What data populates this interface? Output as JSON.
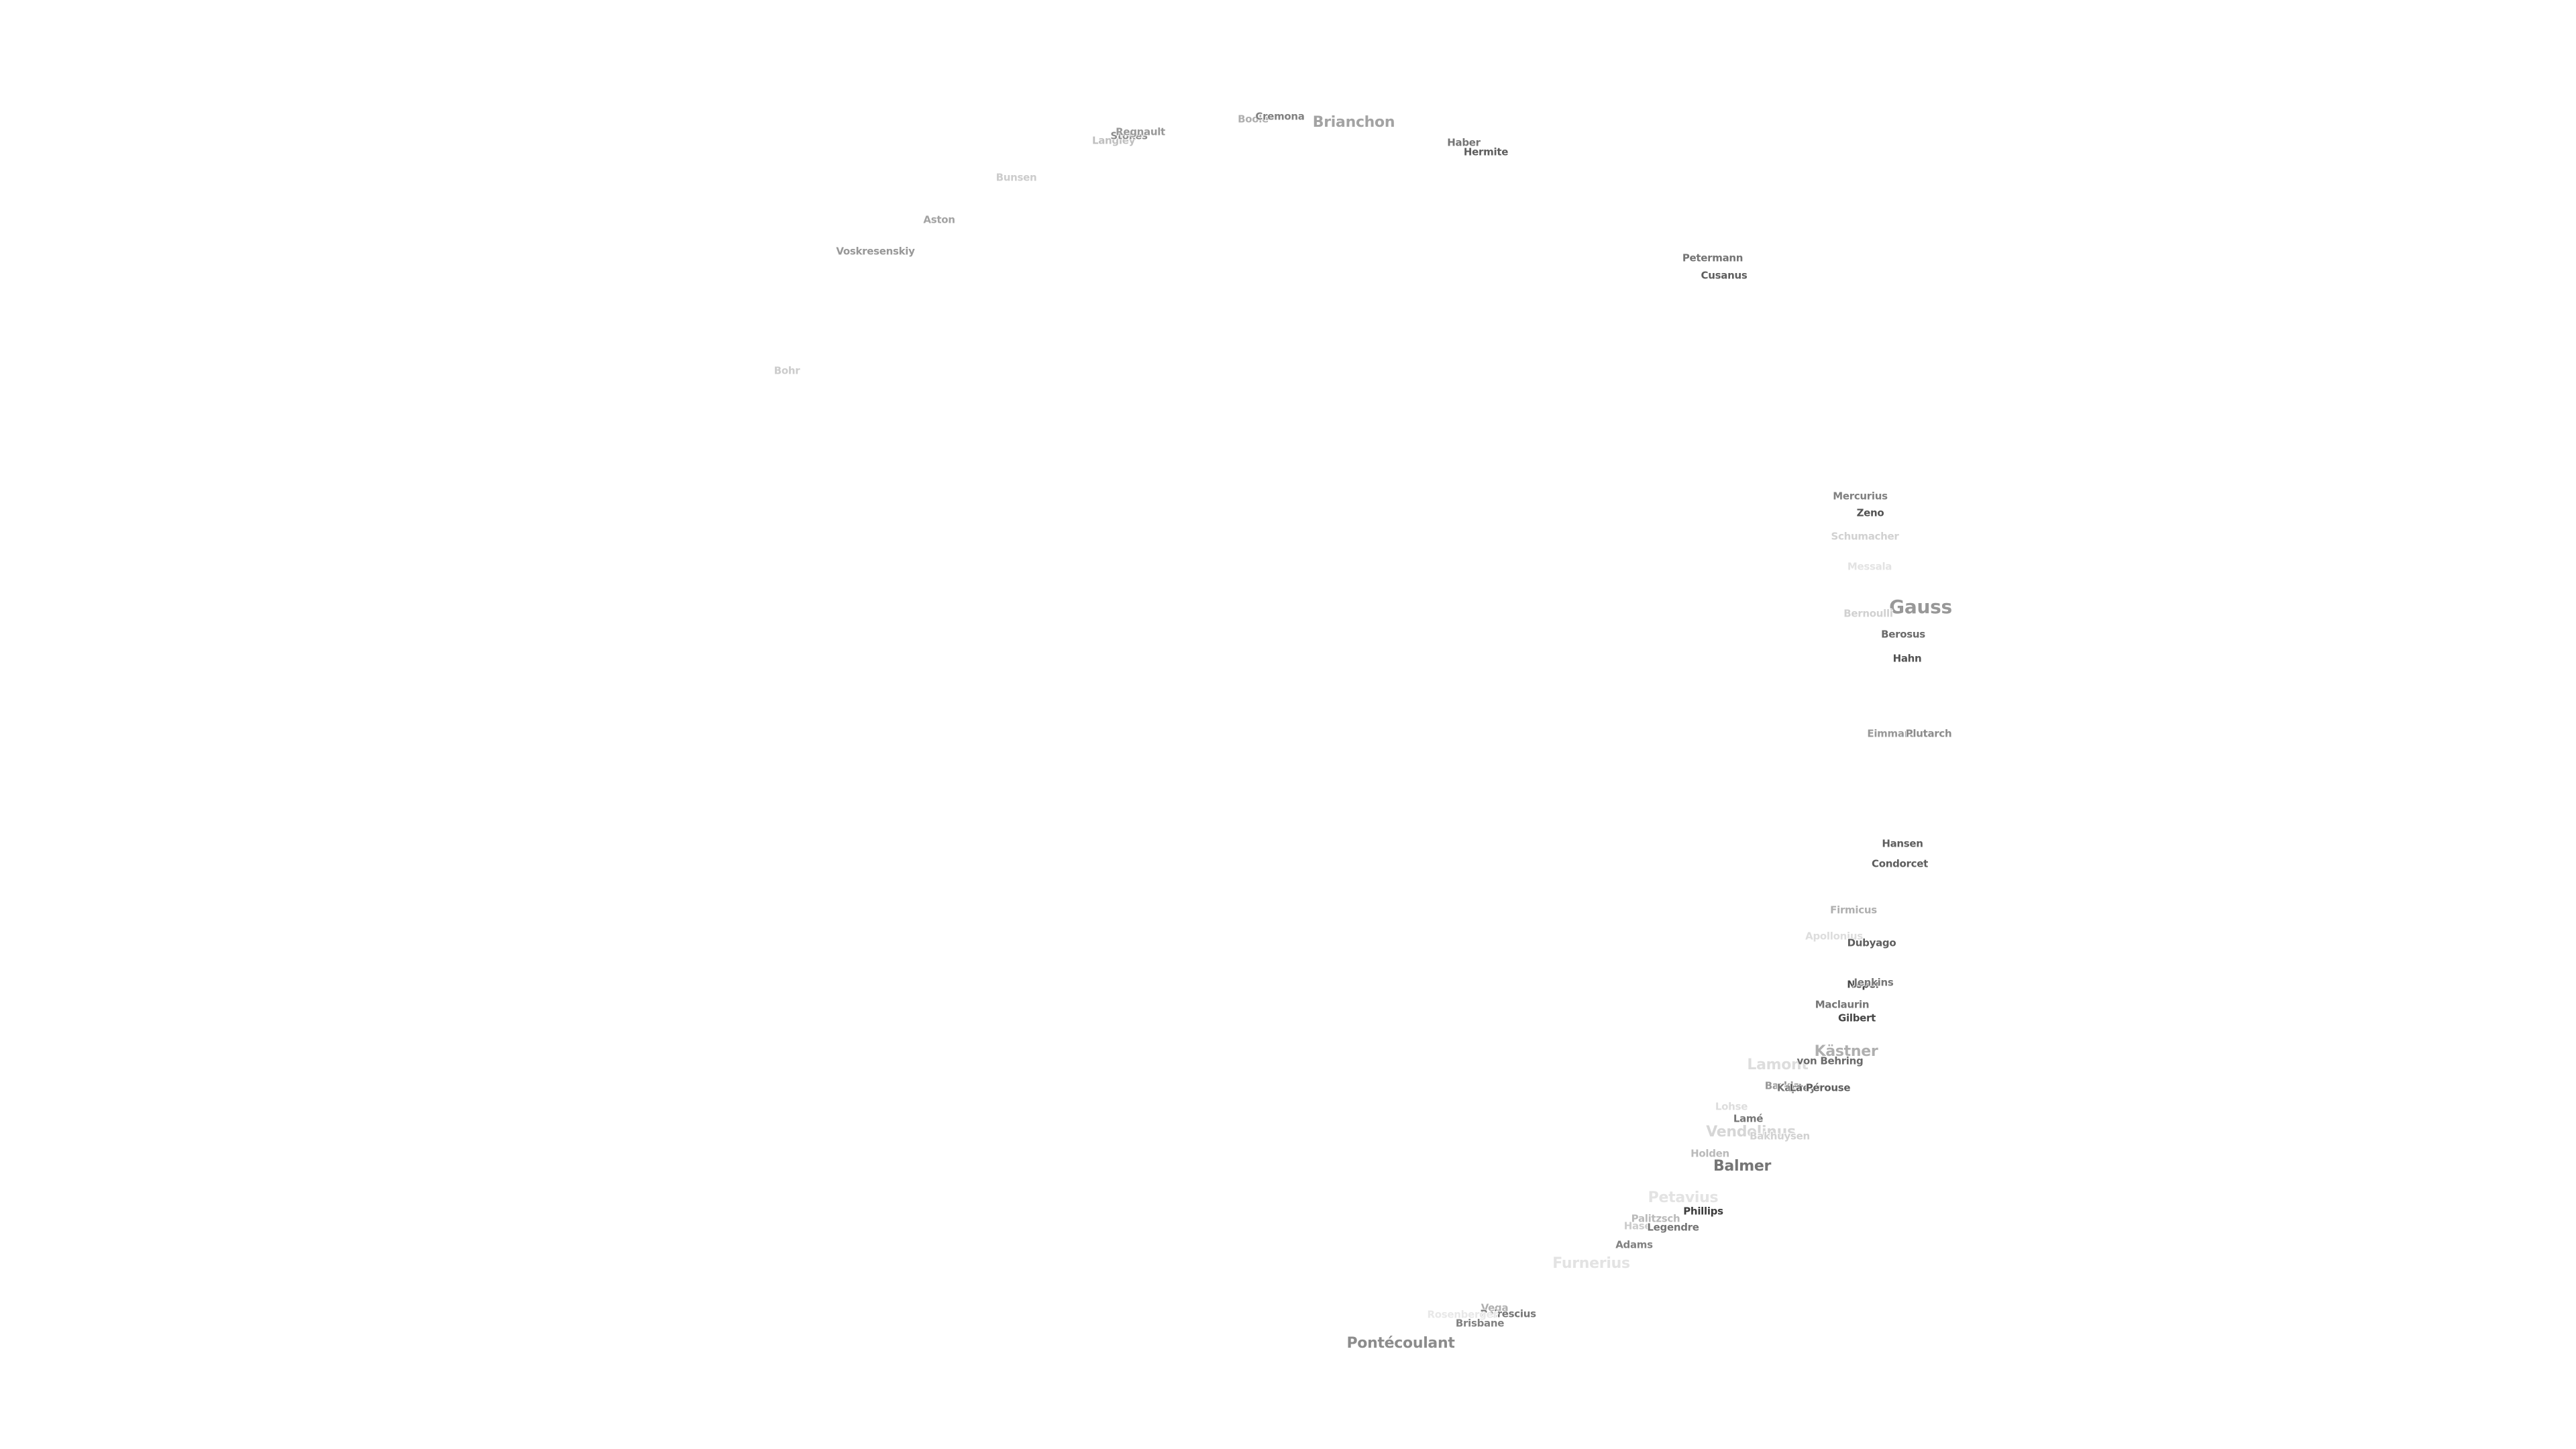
{
  "map": {
    "craters": [
      {
        "name": "Bohr",
        "tone": 0.22,
        "size": "s"
      },
      {
        "name": "Vosk­resenskiy",
        "tone": 0.45,
        "size": "s"
      },
      {
        "name": "Aston",
        "tone": 0.4,
        "size": "s"
      },
      {
        "name": "Bunsen",
        "tone": 0.22,
        "size": "s"
      },
      {
        "name": "Langley",
        "tone": 0.28,
        "size": "s"
      },
      {
        "name": "Stokes",
        "tone": 0.5,
        "size": "s"
      },
      {
        "name": "Regnault",
        "tone": 0.45,
        "size": "s"
      },
      {
        "name": "Boole",
        "tone": 0.35,
        "size": "s"
      },
      {
        "name": "Cremona",
        "tone": 0.55,
        "size": "s"
      },
      {
        "name": "Brianchon",
        "tone": 0.4,
        "size": "m"
      },
      {
        "name": "Haber",
        "tone": 0.6,
        "size": "s"
      },
      {
        "name": "Hermite",
        "tone": 0.7,
        "size": "s"
      },
      {
        "name": "Petermann",
        "tone": 0.6,
        "size": "s"
      },
      {
        "name": "Cusanus",
        "tone": 0.7,
        "size": "s"
      },
      {
        "name": "Mercurius",
        "tone": 0.55,
        "size": "s"
      },
      {
        "name": "Zeno",
        "tone": 0.75,
        "size": "s"
      },
      {
        "name": "Schumacher",
        "tone": 0.2,
        "size": "s"
      },
      {
        "name": "Messala",
        "tone": 0.12,
        "size": "s"
      },
      {
        "name": "Gauss",
        "tone": 0.45,
        "size": "l"
      },
      {
        "name": "Bernoulli",
        "tone": 0.2,
        "size": "s"
      },
      {
        "name": "Berosus",
        "tone": 0.65,
        "size": "s"
      },
      {
        "name": "Hahn",
        "tone": 0.75,
        "size": "s"
      },
      {
        "name": "Eimmart",
        "tone": 0.45,
        "size": "s"
      },
      {
        "name": "Plutarch",
        "tone": 0.5,
        "size": "s"
      },
      {
        "name": "Hansen",
        "tone": 0.7,
        "size": "s"
      },
      {
        "name": "Condorcet",
        "tone": 0.7,
        "size": "s"
      },
      {
        "name": "Firmicus",
        "tone": 0.35,
        "size": "s"
      },
      {
        "name": "Apollonius",
        "tone": 0.15,
        "size": "s"
      },
      {
        "name": "Dubyago",
        "tone": 0.7,
        "size": "s"
      },
      {
        "name": "Neper",
        "tone": 0.8,
        "size": "s"
      },
      {
        "name": "Jenkins",
        "tone": 0.6,
        "size": "s"
      },
      {
        "name": "Maclaurin",
        "tone": 0.6,
        "size": "s"
      },
      {
        "name": "Gilbert",
        "tone": 0.8,
        "size": "s"
      },
      {
        "name": "Kästner",
        "tone": 0.35,
        "size": "m"
      },
      {
        "name": "Lamont",
        "tone": 0.15,
        "size": "m"
      },
      {
        "name": "von Behring",
        "tone": 0.65,
        "size": "s"
      },
      {
        "name": "Barkla",
        "tone": 0.45,
        "size": "s"
      },
      {
        "name": "Kapteyn",
        "tone": 0.6,
        "size": "s"
      },
      {
        "name": "La Pérouse",
        "tone": 0.7,
        "size": "s"
      },
      {
        "name": "Lohse",
        "tone": 0.15,
        "size": "s"
      },
      {
        "name": "Lamé",
        "tone": 0.6,
        "size": "s"
      },
      {
        "name": "Vendelinus",
        "tone": 0.18,
        "size": "m"
      },
      {
        "name": "Bakhuysen",
        "tone": 0.2,
        "size": "s"
      },
      {
        "name": "Holden",
        "tone": 0.3,
        "size": "s"
      },
      {
        "name": "Balmer",
        "tone": 0.6,
        "size": "m"
      },
      {
        "name": "Petavius",
        "tone": 0.12,
        "size": "m"
      },
      {
        "name": "Phillips",
        "tone": 0.85,
        "size": "s"
      },
      {
        "name": "Palitzsch",
        "tone": 0.3,
        "size": "s"
      },
      {
        "name": "Hase",
        "tone": 0.22,
        "size": "s"
      },
      {
        "name": "Legendre",
        "tone": 0.6,
        "size": "s"
      },
      {
        "name": "Adams",
        "tone": 0.55,
        "size": "s"
      },
      {
        "name": "Furnerius",
        "tone": 0.12,
        "size": "m"
      },
      {
        "name": "Vega",
        "tone": 0.35,
        "size": "s"
      },
      {
        "name": "Peirescius",
        "tone": 0.6,
        "size": "s"
      },
      {
        "name": "Brisbane",
        "tone": 0.55,
        "size": "s"
      },
      {
        "name": "Pontécoulant",
        "tone": 0.5,
        "size": "m"
      },
      {
        "name": "Rosenberger",
        "tone": 0.1,
        "size": "s"
      }
    ]
  }
}
